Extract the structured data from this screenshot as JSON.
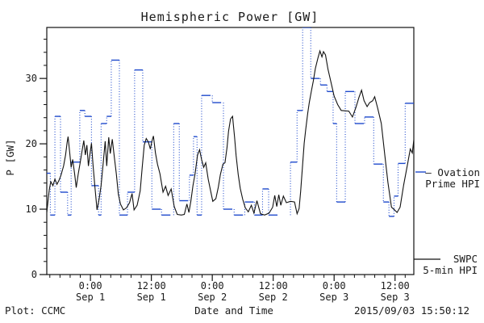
{
  "title": "Hemispheric Power [GW]",
  "y_axis": {
    "label": "P [GW]",
    "tick_labels": [
      "0",
      "10",
      "20",
      "30"
    ]
  },
  "x_axis": {
    "label": "Date and Time"
  },
  "footer": {
    "plot_credit": "Plot: CCMC",
    "timestamp": "2015/09/03 15:50:12"
  },
  "legend": {
    "ovation": {
      "line1": "– Ovation",
      "line2": "Prime HPI",
      "color": "#1f4acc"
    },
    "swpc": {
      "line1": "SWPC",
      "line2": "5-min HPI",
      "color": "#111111"
    }
  },
  "chart_data": {
    "type": "line",
    "title": "Hemispheric Power [GW]",
    "xlabel": "Date and Time",
    "ylabel": "P [GW]",
    "x_unit": "hours relative to 2015-09-01 00:00",
    "xlim": [
      -8.6,
      63.7
    ],
    "ylim": [
      0,
      37.8
    ],
    "grid": false,
    "y_major_ticks": [
      0,
      10,
      20,
      30
    ],
    "y_minor_step": 2,
    "x_minor_step_hours": 2,
    "x_major_ticks": [
      {
        "hours": 0,
        "time": "0:00",
        "date": "Sep 1"
      },
      {
        "hours": 12,
        "time": "12:00",
        "date": "Sep 1"
      },
      {
        "hours": 24,
        "time": "0:00",
        "date": "Sep 2"
      },
      {
        "hours": 36,
        "time": "12:00",
        "date": "Sep 2"
      },
      {
        "hours": 48,
        "time": "0:00",
        "date": "Sep 3"
      },
      {
        "hours": 60,
        "time": "12:00",
        "date": "Sep 3"
      }
    ],
    "legend_position": "right-outside",
    "series": [
      {
        "name": "Ovation Prime HPI",
        "color": "#1f4acc",
        "style": "step-dashed",
        "points": [
          [
            -8.6,
            15.5
          ],
          [
            -7.9,
            9.1
          ],
          [
            -7.0,
            24.2
          ],
          [
            -5.9,
            12.6
          ],
          [
            -4.5,
            9.1
          ],
          [
            -3.8,
            17.2
          ],
          [
            -2.1,
            25.1
          ],
          [
            -1.1,
            24.2
          ],
          [
            0.2,
            13.6
          ],
          [
            1.6,
            9.1
          ],
          [
            2.1,
            23.1
          ],
          [
            3.2,
            24.2
          ],
          [
            4.1,
            32.8
          ],
          [
            5.7,
            9.1
          ],
          [
            7.3,
            12.6
          ],
          [
            8.7,
            31.3
          ],
          [
            10.3,
            20.3
          ],
          [
            12.1,
            10.0
          ],
          [
            14.0,
            9.1
          ],
          [
            16.4,
            23.1
          ],
          [
            17.5,
            11.3
          ],
          [
            19.5,
            15.2
          ],
          [
            20.3,
            21.1
          ],
          [
            21.0,
            9.1
          ],
          [
            21.9,
            27.4
          ],
          [
            24.0,
            26.3
          ],
          [
            26.2,
            10.0
          ],
          [
            28.3,
            9.1
          ],
          [
            30.4,
            11.1
          ],
          [
            32.3,
            9.1
          ],
          [
            33.9,
            13.1
          ],
          [
            35.1,
            9.1
          ],
          [
            39.4,
            17.2
          ],
          [
            40.7,
            25.1
          ],
          [
            41.8,
            37.8
          ],
          [
            43.4,
            30.0
          ],
          [
            45.3,
            29.0
          ],
          [
            46.6,
            28.0
          ],
          [
            47.8,
            23.1
          ],
          [
            48.5,
            11.1
          ],
          [
            50.2,
            28.0
          ],
          [
            52.1,
            23.1
          ],
          [
            54.0,
            24.1
          ],
          [
            55.8,
            16.9
          ],
          [
            57.7,
            11.1
          ],
          [
            58.8,
            8.9
          ],
          [
            59.8,
            12.0
          ],
          [
            60.6,
            17.0
          ],
          [
            62.0,
            26.2
          ]
        ]
      },
      {
        "name": "SWPC 5-min HPI",
        "color": "#111111",
        "style": "solid",
        "points": [
          [
            -8.6,
            9.5
          ],
          [
            -8.4,
            11.0
          ],
          [
            -8.1,
            13.0
          ],
          [
            -7.8,
            14.2
          ],
          [
            -7.4,
            13.6
          ],
          [
            -7.0,
            14.6
          ],
          [
            -6.6,
            13.8
          ],
          [
            -6.2,
            14.4
          ],
          [
            -5.8,
            15.2
          ],
          [
            -5.3,
            16.6
          ],
          [
            -4.9,
            18.3
          ],
          [
            -4.6,
            20.2
          ],
          [
            -4.4,
            21.1
          ],
          [
            -4.1,
            18.8
          ],
          [
            -3.8,
            16.4
          ],
          [
            -3.5,
            17.6
          ],
          [
            -3.1,
            15.3
          ],
          [
            -2.8,
            13.3
          ],
          [
            -2.4,
            15.4
          ],
          [
            -2.0,
            17.2
          ],
          [
            -1.6,
            19.2
          ],
          [
            -1.3,
            20.5
          ],
          [
            -1.0,
            18.3
          ],
          [
            -0.7,
            19.8
          ],
          [
            -0.4,
            16.6
          ],
          [
            -0.1,
            18.4
          ],
          [
            0.2,
            20.1
          ],
          [
            0.5,
            16.8
          ],
          [
            0.9,
            13.2
          ],
          [
            1.3,
            9.9
          ],
          [
            1.7,
            11.5
          ],
          [
            2.1,
            13.6
          ],
          [
            2.5,
            17.0
          ],
          [
            2.9,
            20.4
          ],
          [
            3.2,
            16.6
          ],
          [
            3.6,
            21.0
          ],
          [
            3.9,
            18.5
          ],
          [
            4.3,
            20.7
          ],
          [
            4.7,
            18.0
          ],
          [
            5.1,
            15.4
          ],
          [
            5.5,
            12.3
          ],
          [
            5.9,
            10.8
          ],
          [
            6.5,
            9.9
          ],
          [
            7.1,
            10.2
          ],
          [
            7.7,
            11.0
          ],
          [
            8.2,
            12.4
          ],
          [
            8.6,
            9.9
          ],
          [
            9.2,
            10.6
          ],
          [
            9.8,
            12.8
          ],
          [
            10.2,
            16.4
          ],
          [
            10.6,
            19.8
          ],
          [
            11.0,
            20.8
          ],
          [
            11.4,
            20.3
          ],
          [
            11.8,
            19.2
          ],
          [
            12.1,
            20.4
          ],
          [
            12.4,
            21.2
          ],
          [
            12.8,
            18.6
          ],
          [
            13.2,
            16.9
          ],
          [
            13.7,
            15.4
          ],
          [
            14.3,
            12.6
          ],
          [
            14.8,
            13.5
          ],
          [
            15.3,
            12.1
          ],
          [
            15.9,
            13.1
          ],
          [
            16.5,
            10.4
          ],
          [
            17.1,
            9.2
          ],
          [
            17.9,
            9.1
          ],
          [
            18.5,
            9.2
          ],
          [
            19.0,
            10.8
          ],
          [
            19.4,
            9.5
          ],
          [
            19.8,
            11.3
          ],
          [
            20.2,
            13.6
          ],
          [
            20.6,
            15.4
          ],
          [
            21.1,
            18.3
          ],
          [
            21.5,
            19.1
          ],
          [
            21.9,
            17.6
          ],
          [
            22.3,
            16.4
          ],
          [
            22.7,
            17.1
          ],
          [
            23.2,
            14.6
          ],
          [
            23.6,
            13.1
          ],
          [
            24.1,
            11.2
          ],
          [
            24.7,
            11.6
          ],
          [
            25.2,
            13.4
          ],
          [
            25.6,
            15.3
          ],
          [
            26.1,
            16.9
          ],
          [
            26.5,
            17.1
          ],
          [
            26.9,
            19.4
          ],
          [
            27.2,
            21.9
          ],
          [
            27.6,
            23.8
          ],
          [
            28.0,
            24.2
          ],
          [
            28.4,
            21.0
          ],
          [
            28.7,
            18.2
          ],
          [
            29.1,
            15.3
          ],
          [
            29.5,
            13.2
          ],
          [
            30.0,
            11.5
          ],
          [
            30.5,
            10.2
          ],
          [
            31.1,
            9.6
          ],
          [
            31.7,
            10.6
          ],
          [
            32.2,
            9.4
          ],
          [
            32.8,
            11.3
          ],
          [
            33.5,
            9.3
          ],
          [
            34.3,
            9.1
          ],
          [
            35.2,
            9.4
          ],
          [
            35.9,
            10.3
          ],
          [
            36.3,
            12.1
          ],
          [
            36.7,
            10.4
          ],
          [
            37.1,
            12.2
          ],
          [
            37.5,
            10.6
          ],
          [
            38.0,
            12.0
          ],
          [
            38.6,
            11.0
          ],
          [
            39.4,
            11.2
          ],
          [
            40.2,
            11.1
          ],
          [
            40.7,
            9.3
          ],
          [
            41.1,
            10.1
          ],
          [
            41.4,
            12.7
          ],
          [
            41.8,
            16.9
          ],
          [
            42.1,
            20.1
          ],
          [
            42.4,
            22.2
          ],
          [
            42.8,
            24.7
          ],
          [
            43.1,
            26.3
          ],
          [
            43.5,
            28.0
          ],
          [
            43.9,
            29.6
          ],
          [
            44.3,
            31.5
          ],
          [
            44.8,
            33.1
          ],
          [
            45.2,
            34.2
          ],
          [
            45.6,
            33.3
          ],
          [
            45.9,
            34.1
          ],
          [
            46.3,
            33.6
          ],
          [
            46.8,
            31.4
          ],
          [
            47.3,
            29.7
          ],
          [
            48.0,
            27.3
          ],
          [
            48.7,
            26.0
          ],
          [
            49.4,
            25.1
          ],
          [
            50.9,
            25.0
          ],
          [
            51.6,
            24.1
          ],
          [
            52.3,
            25.6
          ],
          [
            52.9,
            27.1
          ],
          [
            53.4,
            28.2
          ],
          [
            53.9,
            26.6
          ],
          [
            54.5,
            25.7
          ],
          [
            55.0,
            26.3
          ],
          [
            55.6,
            26.6
          ],
          [
            56.0,
            27.2
          ],
          [
            56.6,
            25.4
          ],
          [
            57.3,
            23.1
          ],
          [
            58.0,
            18.2
          ],
          [
            58.6,
            14.1
          ],
          [
            59.3,
            10.3
          ],
          [
            59.9,
            9.9
          ],
          [
            60.4,
            9.5
          ],
          [
            61.0,
            10.3
          ],
          [
            61.7,
            13.7
          ],
          [
            62.5,
            17.0
          ],
          [
            63.0,
            19.2
          ],
          [
            63.4,
            18.6
          ],
          [
            63.7,
            20.6
          ]
        ]
      }
    ]
  }
}
